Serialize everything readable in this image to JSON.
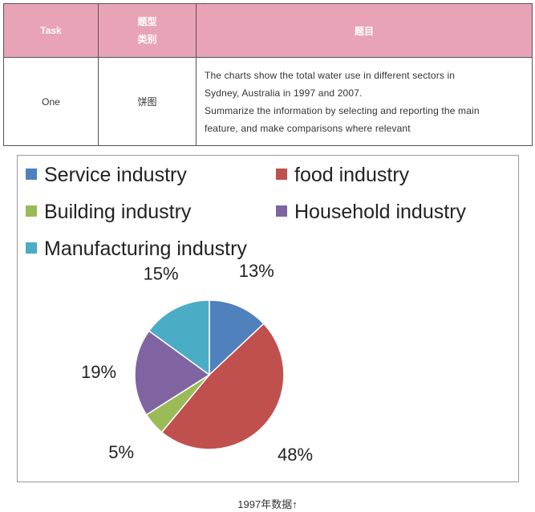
{
  "table": {
    "headers": {
      "task": "Task",
      "type_line1": "题型",
      "type_line2": "类别",
      "topic": "题目"
    },
    "row": {
      "task": "One",
      "type": "饼图",
      "description_lines": [
        "The charts show the total water use in different sectors in",
        "Sydney, Australia in 1997 and 2007.",
        "Summarize the information by selecting and reporting the main",
        "feature, and make comparisons where relevant"
      ]
    }
  },
  "chart_data": {
    "type": "pie",
    "title": "",
    "legend_position": "top",
    "slices": [
      {
        "label": "Service industry",
        "value": 13,
        "display": "13%",
        "color": "#4f81bd"
      },
      {
        "label": "food industry",
        "value": 48,
        "display": "48%",
        "color": "#c0504d"
      },
      {
        "label": "Building industry",
        "value": 5,
        "display": "5%",
        "color": "#9bbb59"
      },
      {
        "label": "Household industry",
        "value": 19,
        "display": "19%",
        "color": "#8064a2"
      },
      {
        "label": "Manufacturing industry",
        "value": 15,
        "display": "15%",
        "color": "#4bacc6"
      }
    ]
  },
  "caption": "1997年数据↑"
}
